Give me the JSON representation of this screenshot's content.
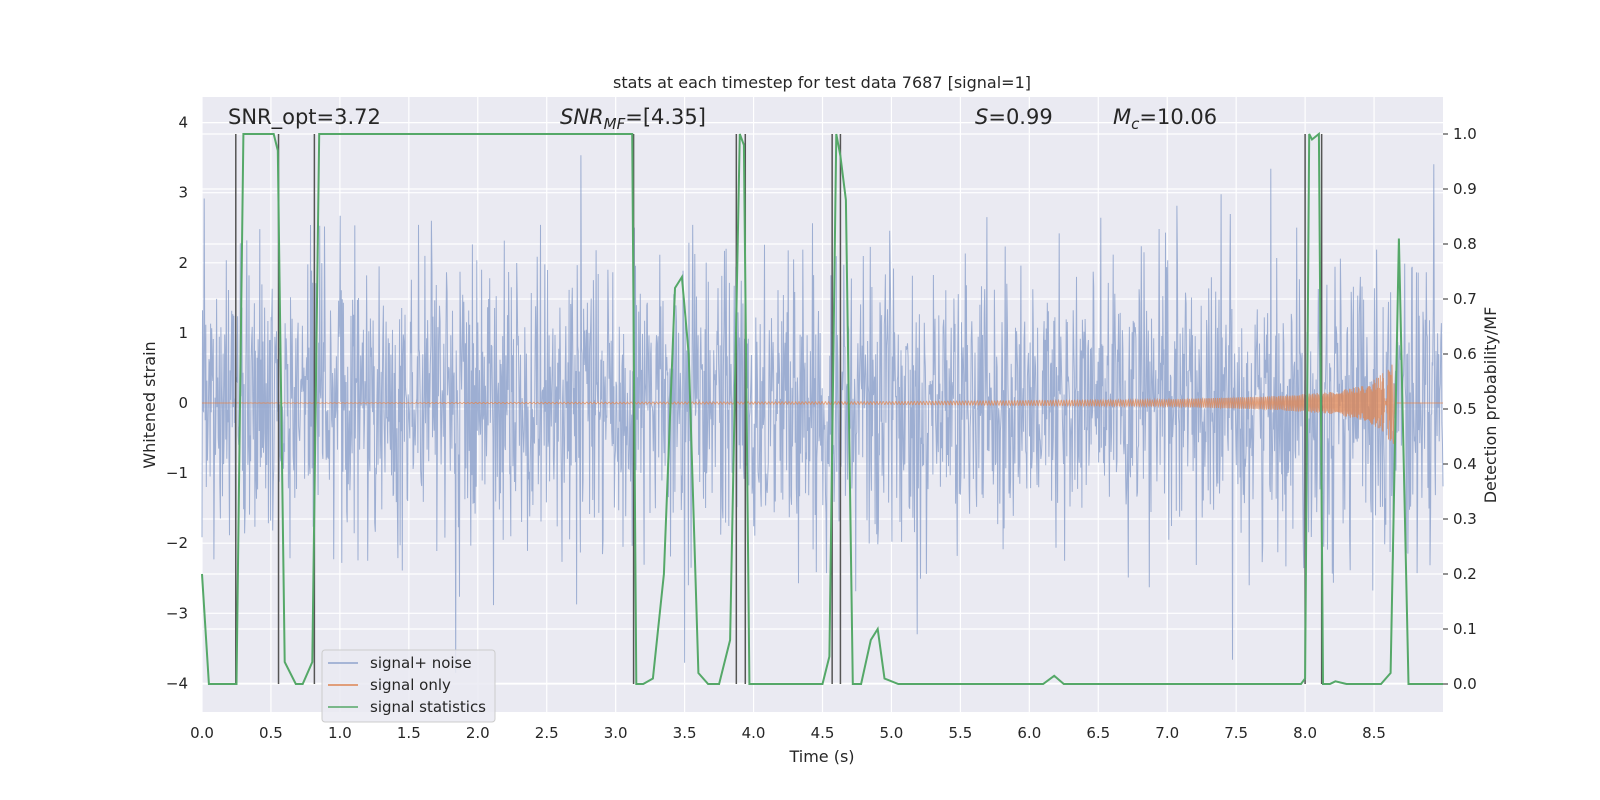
{
  "chart_data": {
    "type": "line",
    "title": "stats at each timestep for test data 7687 [signal=1]",
    "xlabel": "Time (s)",
    "ylabel": "Whitened strain",
    "ylabel_right": "Detection probability/MF",
    "xlim": [
      0,
      9.0
    ],
    "ylim": [
      -4.2,
      4.4
    ],
    "ylim_right": [
      -0.05,
      1.04
    ],
    "x_ticks": [
      0.0,
      0.5,
      1.0,
      1.5,
      2.0,
      2.5,
      3.0,
      3.5,
      4.0,
      4.5,
      5.0,
      5.5,
      6.0,
      6.5,
      7.0,
      7.5,
      8.0,
      8.5
    ],
    "x_tick_labels": [
      "0.0",
      "0.5",
      "1.0",
      "1.5",
      "2.0",
      "2.5",
      "3.0",
      "3.5",
      "4.0",
      "4.5",
      "5.0",
      "5.5",
      "6.0",
      "6.5",
      "7.0",
      "7.5",
      "8.0",
      "8.5"
    ],
    "y_ticks": [
      4,
      3,
      2,
      1,
      0,
      -1,
      -2,
      -3,
      -4
    ],
    "y_tick_labels": [
      "4",
      "3",
      "2",
      "1",
      "0",
      "−1",
      "−2",
      "−3",
      "−4"
    ],
    "y_right_ticks": [
      1.0,
      0.9,
      0.8,
      0.7,
      0.6,
      0.5,
      0.4,
      0.3,
      0.2,
      0.1,
      0.0
    ],
    "y_right_tick_labels": [
      "1.0",
      "0.9",
      "0.8",
      "0.7",
      "0.6",
      "0.5",
      "0.4",
      "0.3",
      "0.2",
      "0.1",
      "0.0"
    ],
    "grid": true,
    "legend_position": "lower-left",
    "annotations": {
      "snr_opt": "SNR_opt=3.72",
      "snr_mf_sym": "SNR",
      "snr_mf_sub": "MF",
      "snr_mf_val": "=[4.35]",
      "s_sym": "S",
      "s_val": "=0.99",
      "mc_sym": "M",
      "mc_sub": "c",
      "mc_val": "=10.06"
    },
    "series": [
      {
        "name": "signal+ noise",
        "color": "#8fa3cc",
        "description": "whitened noise, roughly ±2 with spikes to ±4",
        "envelope_segments": [
          {
            "x": [
              0.0,
              1.0
            ],
            "low": -2.2,
            "high": 2.2
          },
          {
            "x": [
              1.0,
              3.0
            ],
            "low": -2.4,
            "high": 2.3
          },
          {
            "x": [
              3.0,
              5.0
            ],
            "low": -2.3,
            "high": 2.2
          },
          {
            "x": [
              5.0,
              7.0
            ],
            "low": -2.2,
            "high": 2.2
          },
          {
            "x": [
              7.0,
              9.0
            ],
            "low": -2.3,
            "high": 2.3
          }
        ]
      },
      {
        "name": "signal only",
        "color": "#dd8452",
        "description": "chirp, near zero then growing to about ±0.65 near t=8.65 s",
        "amplitude_points": [
          [
            0.0,
            0.0
          ],
          [
            5.0,
            0.02
          ],
          [
            7.0,
            0.05
          ],
          [
            7.8,
            0.1
          ],
          [
            8.2,
            0.16
          ],
          [
            8.45,
            0.26
          ],
          [
            8.58,
            0.45
          ],
          [
            8.65,
            0.65
          ]
        ],
        "end_time": 8.65
      },
      {
        "name": "signal statistics",
        "color": "#55a868",
        "axis": "right",
        "x": [
          0.0,
          0.05,
          0.25,
          0.3,
          0.35,
          0.52,
          0.55,
          0.6,
          0.68,
          0.73,
          0.8,
          0.85,
          0.88,
          3.07,
          3.12,
          3.15,
          3.2,
          3.27,
          3.35,
          3.43,
          3.48,
          3.53,
          3.6,
          3.67,
          3.75,
          3.83,
          3.9,
          3.93,
          3.97,
          4.05,
          4.5,
          4.55,
          4.6,
          4.63,
          4.67,
          4.72,
          4.78,
          4.85,
          4.9,
          4.95,
          5.05,
          6.1,
          6.18,
          6.25,
          7.97,
          8.0,
          8.03,
          8.05,
          8.1,
          8.13,
          8.18,
          8.22,
          8.3,
          8.55,
          8.62,
          8.68,
          8.75,
          9.0
        ],
        "y": [
          0.2,
          0.0,
          0.0,
          1.0,
          1.0,
          1.0,
          0.97,
          0.04,
          0.0,
          0.0,
          0.04,
          1.0,
          1.0,
          1.0,
          1.0,
          0.0,
          0.0,
          0.01,
          0.2,
          0.72,
          0.74,
          0.6,
          0.02,
          0.0,
          0.0,
          0.08,
          1.0,
          0.98,
          0.0,
          0.0,
          0.0,
          0.05,
          1.0,
          0.96,
          0.88,
          0.0,
          0.0,
          0.08,
          0.1,
          0.01,
          0.0,
          0.0,
          0.015,
          0.0,
          0.0,
          0.01,
          1.0,
          0.99,
          1.0,
          0.0,
          0.0,
          0.005,
          0.0,
          0.0,
          0.02,
          0.81,
          0.0,
          0.0
        ]
      }
    ],
    "vertical_markers": [
      {
        "x": 0.245,
        "y_top": 1.0,
        "y_bottom": 0.0
      },
      {
        "x": 0.555,
        "y_top": 1.0,
        "y_bottom": 0.0
      },
      {
        "x": 0.815,
        "y_top": 1.0,
        "y_bottom": 0.0
      },
      {
        "x": 3.13,
        "y_top": 1.0,
        "y_bottom": 0.0
      },
      {
        "x": 3.875,
        "y_top": 1.0,
        "y_bottom": 0.0
      },
      {
        "x": 3.94,
        "y_top": 1.0,
        "y_bottom": 0.0
      },
      {
        "x": 4.57,
        "y_top": 1.0,
        "y_bottom": 0.0
      },
      {
        "x": 4.63,
        "y_top": 1.0,
        "y_bottom": 0.0
      },
      {
        "x": 8.0,
        "y_top": 1.0,
        "y_bottom": 0.0
      },
      {
        "x": 8.12,
        "y_top": 1.0,
        "y_bottom": 0.0
      }
    ],
    "colors": {
      "axes_background": "#eaeaf2",
      "grid": "#ffffff",
      "marker": "#555555"
    }
  }
}
